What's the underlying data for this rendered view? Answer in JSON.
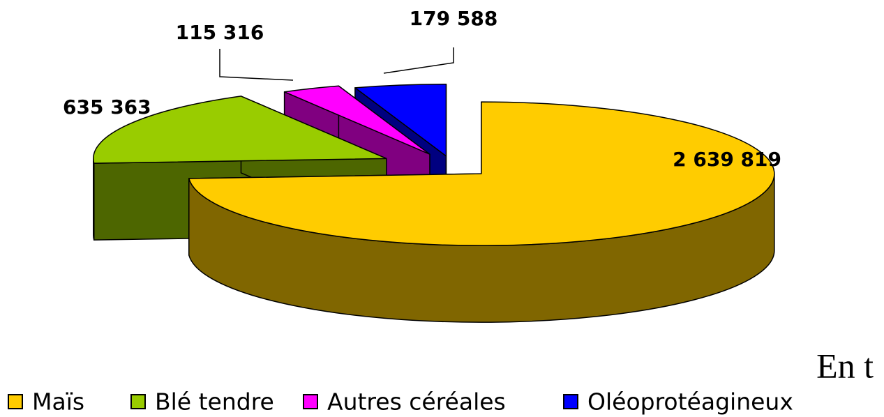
{
  "chart_data": {
    "type": "pie3d",
    "categories": [
      "Maïs",
      "Blé tendre",
      "Autres céréales",
      "Oléoprotéagineux"
    ],
    "values": [
      2639819,
      635363,
      115316,
      179588
    ],
    "value_labels": [
      "2 639 819",
      "635 363",
      "115 316",
      "179 588"
    ],
    "colors": [
      "#FFCC00",
      "#99CC00",
      "#FF00FF",
      "#0000FF"
    ],
    "annotation": "En t",
    "legend": "bottom"
  }
}
